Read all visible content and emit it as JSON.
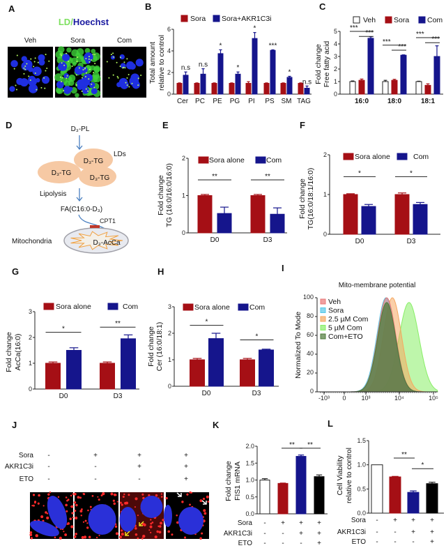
{
  "panel_a": {
    "label": "A",
    "title_ld": "LD",
    "title_sep": "/",
    "title_hoechst": "Hoechst",
    "conditions": [
      "Veh",
      "Sora",
      "Com"
    ],
    "colors": {
      "ld": "#7ee060",
      "hoechst": "#1a1aa0"
    }
  },
  "panel_d": {
    "label": "D",
    "pl": "D₃-PL",
    "lds": "LDs",
    "tg": [
      "D₃-TG",
      "D₃-TG",
      "D₃-TG"
    ],
    "lipolysis": "Lipolysis",
    "fa": "FA(C16:0-D₃)",
    "cpt1": "CPT1",
    "mito": "Mitochondria",
    "acca": "D₃-AcCa",
    "colors": {
      "droplet": "#f6c9a4",
      "arrow": "#4a7fc0",
      "cpt1": "#c0392b",
      "star": "#f0a040"
    }
  },
  "panel_j": {
    "label": "J",
    "rows": [
      {
        "name": "Sora",
        "values": [
          "-",
          "+",
          "+",
          "+"
        ]
      },
      {
        "name": "AKR1C3i",
        "values": [
          "-",
          "-",
          "+",
          "+"
        ]
      },
      {
        "name": "ETO",
        "values": [
          "-",
          "-",
          "-",
          "+"
        ]
      }
    ]
  },
  "colors": {
    "sora": "#a50f15",
    "com": "#15158c",
    "veh": "#ffffff",
    "eto": "#000000"
  },
  "chart_data": [
    {
      "panel": "B",
      "type": "bar",
      "ylabel": [
        "Total amount",
        "relative to control"
      ],
      "ylim": [
        0,
        6
      ],
      "yticks": [
        "0",
        "2",
        "4",
        "6"
      ],
      "categories": [
        "Cer",
        "PC",
        "PE",
        "PG",
        "PI",
        "PS",
        "SM",
        "TAG"
      ],
      "series": [
        {
          "name": "Sora",
          "color": "#a50f15",
          "values": [
            1,
            1,
            1,
            1,
            1,
            1,
            1,
            1
          ],
          "errors": [
            0.04,
            0.04,
            0.04,
            0.04,
            0.15,
            0.04,
            0.04,
            0.04
          ]
        },
        {
          "name": "Sora+AKR1C3i",
          "color": "#15158c",
          "values": [
            1.75,
            1.85,
            3.75,
            1.85,
            5.15,
            4.05,
            1.55,
            0.55
          ],
          "errors": [
            0.3,
            0.5,
            0.35,
            0.2,
            0.55,
            0.05,
            0.1,
            0.2
          ]
        }
      ],
      "bar_labels": [
        "n.s",
        "n.s",
        "*",
        "*",
        "*",
        "***",
        "*",
        "n.s"
      ]
    },
    {
      "panel": "C",
      "type": "bar",
      "ylabel": [
        "Fold change",
        "Free fatty acid"
      ],
      "ylim": [
        0,
        5
      ],
      "yticks": [
        "0",
        "1",
        "2",
        "3",
        "4",
        "5"
      ],
      "categories": [
        "16:0",
        "18:0",
        "18:1"
      ],
      "series": [
        {
          "name": "Veh",
          "color": "#ffffff",
          "values": [
            1,
            1,
            1
          ],
          "errors": [
            0.05,
            0.1,
            0.03
          ]
        },
        {
          "name": "Sora",
          "color": "#a50f15",
          "values": [
            1.1,
            1.1,
            0.7
          ],
          "errors": [
            0.1,
            0.08,
            0.12
          ]
        },
        {
          "name": "Com",
          "color": "#15158c",
          "values": [
            4.45,
            3.1,
            3.0
          ],
          "errors": [
            0.12,
            0.03,
            0.85
          ]
        }
      ],
      "significance": [
        {
          "group": 0,
          "between": [
            0,
            2
          ],
          "y": 5.0,
          "label": "***"
        },
        {
          "group": 0,
          "between": [
            1,
            2
          ],
          "y": 4.6,
          "label": "***"
        },
        {
          "group": 1,
          "between": [
            0,
            2
          ],
          "y": 3.9,
          "label": "***"
        },
        {
          "group": 1,
          "between": [
            1,
            2
          ],
          "y": 3.5,
          "label": "***"
        },
        {
          "group": 2,
          "between": [
            0,
            2
          ],
          "y": 4.5,
          "label": "***"
        },
        {
          "group": 2,
          "between": [
            1,
            2
          ],
          "y": 4.1,
          "label": "***"
        }
      ]
    },
    {
      "panel": "E",
      "type": "bar",
      "ylabel": [
        "Fold change",
        "TG (16:0/16:0/16:0)"
      ],
      "ylim": [
        0,
        2
      ],
      "yticks": [
        "0",
        "1",
        "2"
      ],
      "categories": [
        "D0",
        "D3"
      ],
      "series": [
        {
          "name": "Sora alone",
          "color": "#a50f15",
          "values": [
            1,
            1
          ],
          "errors": [
            0.03,
            0.03
          ]
        },
        {
          "name": "Com",
          "color": "#15158c",
          "values": [
            0.52,
            0.5
          ],
          "errors": [
            0.17,
            0.17
          ]
        }
      ],
      "significance": [
        {
          "group": 0,
          "between": [
            0,
            1
          ],
          "y": 1.42,
          "label": "**"
        },
        {
          "group": 1,
          "between": [
            0,
            1
          ],
          "y": 1.42,
          "label": "**"
        }
      ]
    },
    {
      "panel": "F",
      "type": "bar",
      "ylabel": [
        "Fold change",
        "TG(16:0/18:1/16:0)"
      ],
      "ylim": [
        0,
        2
      ],
      "yticks": [
        "0",
        "1",
        "2"
      ],
      "categories": [
        "D0",
        "D3"
      ],
      "series": [
        {
          "name": "Sora alone",
          "color": "#a50f15",
          "values": [
            1,
            1
          ],
          "errors": [
            0.02,
            0.04
          ]
        },
        {
          "name": "Com",
          "color": "#15158c",
          "values": [
            0.7,
            0.75
          ],
          "errors": [
            0.05,
            0.05
          ]
        }
      ],
      "significance": [
        {
          "group": 0,
          "between": [
            0,
            1
          ],
          "y": 1.45,
          "label": "*"
        },
        {
          "group": 1,
          "between": [
            0,
            1
          ],
          "y": 1.45,
          "label": "*"
        }
      ]
    },
    {
      "panel": "G",
      "type": "bar",
      "ylabel": [
        "Fold change",
        "AcCa(16:0)"
      ],
      "ylim": [
        0,
        3
      ],
      "yticks": [
        "0",
        "1",
        "2",
        "3"
      ],
      "categories": [
        "D0",
        "D3"
      ],
      "series": [
        {
          "name": "Sora alone",
          "color": "#a50f15",
          "values": [
            1,
            1
          ],
          "errors": [
            0.05,
            0.05
          ]
        },
        {
          "name": "Com",
          "color": "#15158c",
          "values": [
            1.5,
            1.95
          ],
          "errors": [
            0.1,
            0.15
          ]
        }
      ],
      "significance": [
        {
          "group": 0,
          "between": [
            0,
            1
          ],
          "y": 2.2,
          "label": "*"
        },
        {
          "group": 1,
          "between": [
            0,
            1
          ],
          "y": 2.4,
          "label": "**"
        }
      ]
    },
    {
      "panel": "H",
      "type": "bar",
      "ylabel": [
        "Fold change",
        "Cer (16:0/18:1)"
      ],
      "ylim": [
        0,
        3
      ],
      "yticks": [
        "0",
        "1",
        "2",
        "3"
      ],
      "categories": [
        "D0",
        "D3"
      ],
      "series": [
        {
          "name": "Sora alone",
          "color": "#a50f15",
          "values": [
            1,
            1
          ],
          "errors": [
            0.05,
            0.05
          ]
        },
        {
          "name": "Com",
          "color": "#15158c",
          "values": [
            1.8,
            1.37
          ],
          "errors": [
            0.2,
            0.03
          ]
        }
      ],
      "significance": [
        {
          "group": 0,
          "between": [
            0,
            1
          ],
          "y": 2.3,
          "label": "*"
        },
        {
          "group": 1,
          "between": [
            0,
            1
          ],
          "y": 1.75,
          "label": "*"
        }
      ]
    },
    {
      "panel": "I",
      "type": "area",
      "title": "Mito-membrane potential",
      "ylabel": "Normalized To Mode",
      "ylim": [
        0,
        100
      ],
      "yticks": [
        "0",
        "20",
        "40",
        "60",
        "80",
        "100"
      ],
      "xscale": "biexponential",
      "xticks": [
        "-10³",
        "0",
        "10³",
        "10⁴",
        "10⁵"
      ],
      "legend_position": "top-left",
      "series": [
        {
          "name": "Veh",
          "color": "#e87878",
          "peak": 4200,
          "peak_height": 100,
          "spread_decades": 0.27
        },
        {
          "name": "Sora",
          "color": "#55c8e8",
          "peak": 4000,
          "peak_height": 100,
          "spread_decades": 0.27
        },
        {
          "name": "2.5 µM Com",
          "color": "#f5a860",
          "peak": 6200,
          "peak_height": 100,
          "spread_decades": 0.27
        },
        {
          "name": "5 µM Com",
          "color": "#88ee66",
          "peak": 19500,
          "peak_height": 95,
          "spread_decades": 0.3
        },
        {
          "name": "Com+ETO",
          "color": "#4f7a3a",
          "peak": 4200,
          "peak_height": 95,
          "spread_decades": 0.27
        }
      ]
    },
    {
      "panel": "K",
      "type": "bar",
      "ylabel": [
        "Fold change",
        "FIS1 mRNA"
      ],
      "ylim": [
        0,
        2
      ],
      "yticks": [
        "0.0",
        "0.5",
        "1.0",
        "1.5",
        "2.0"
      ],
      "values": [
        1.0,
        0.9,
        1.7,
        1.1
      ],
      "errors": [
        0.04,
        0.01,
        0.04,
        0.05
      ],
      "colors": [
        "#ffffff",
        "#a50f15",
        "#15158c",
        "#000000"
      ],
      "treatments": [
        {
          "name": "Sora",
          "values": [
            "-",
            "+",
            "+",
            "+"
          ]
        },
        {
          "name": "AKR1C3i",
          "values": [
            "-",
            "-",
            "+",
            "+"
          ]
        },
        {
          "name": "ETO",
          "values": [
            "-",
            "-",
            "-",
            "+"
          ]
        }
      ],
      "significance": [
        {
          "between": [
            1,
            2
          ],
          "y": 1.94,
          "label": "**"
        },
        {
          "between": [
            2,
            3
          ],
          "y": 1.94,
          "label": "**"
        }
      ]
    },
    {
      "panel": "L",
      "type": "bar",
      "ylabel": [
        "Cell Viability",
        "relative to control"
      ],
      "ylim": [
        0,
        1.5
      ],
      "yticks": [
        "0.0",
        "0.5",
        "1.0",
        "1.5"
      ],
      "values": [
        1.0,
        0.75,
        0.43,
        0.61
      ],
      "errors": [
        0,
        0.01,
        0.03,
        0.03
      ],
      "colors": [
        "#ffffff",
        "#a50f15",
        "#15158c",
        "#000000"
      ],
      "treatments": [
        {
          "name": "Sora",
          "values": [
            "-",
            "+",
            "+",
            "+"
          ]
        },
        {
          "name": "AKR1C3i",
          "values": [
            "-",
            "-",
            "+",
            "+"
          ]
        },
        {
          "name": "ETO",
          "values": [
            "-",
            "-",
            "-",
            "+"
          ]
        }
      ],
      "significance": [
        {
          "between": [
            1,
            2
          ],
          "y": 1.14,
          "label": "**"
        },
        {
          "between": [
            2,
            3
          ],
          "y": 0.92,
          "label": "*"
        }
      ]
    }
  ]
}
